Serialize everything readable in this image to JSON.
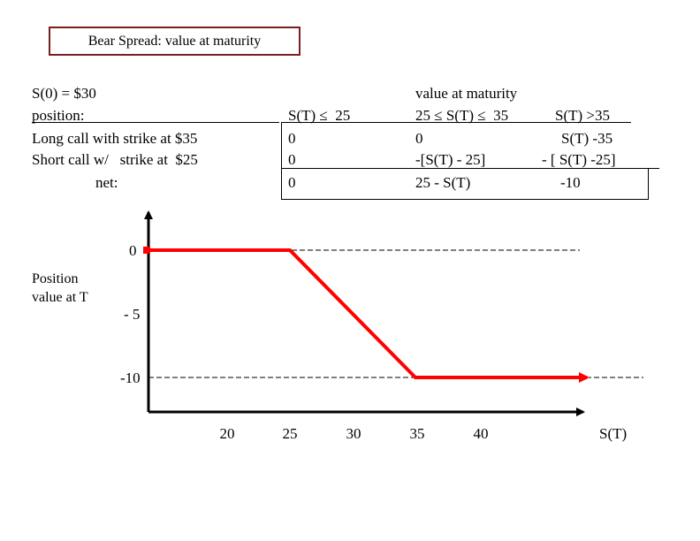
{
  "title": "Bear Spread: value at maturity",
  "setup": {
    "s0": "S(0) = $30",
    "position_label": "position:",
    "long_call": "Long call with strike at $35",
    "short_call": "Short call w/   strike at  $25",
    "net_label": "net:"
  },
  "table": {
    "header_group": "value at maturity",
    "col1_header": "S(T) ≤  25",
    "col2_header": "25 ≤ S(T) ≤  35",
    "col3_header": "S(T) >35",
    "rows": [
      [
        "0",
        "0",
        "S(T) -35"
      ],
      [
        "0",
        "-[S(T) - 25]",
        "- [ S(T) -25]"
      ],
      [
        "0",
        "25 - S(T)",
        "-10"
      ]
    ]
  },
  "chart_data": {
    "type": "line",
    "ylabel": "Position value at T",
    "xlabel": "S(T)",
    "x_ticks": [
      "20",
      "25",
      "30",
      "35",
      "40"
    ],
    "y_ticks": [
      "0",
      "- 5",
      "-10"
    ],
    "series": [
      {
        "x": [
          15,
          25,
          35,
          50
        ],
        "y": [
          0,
          0,
          -10,
          -10
        ]
      }
    ],
    "line_color": "#ff0000",
    "reference_lines": [
      0,
      -10
    ],
    "grid": false
  }
}
